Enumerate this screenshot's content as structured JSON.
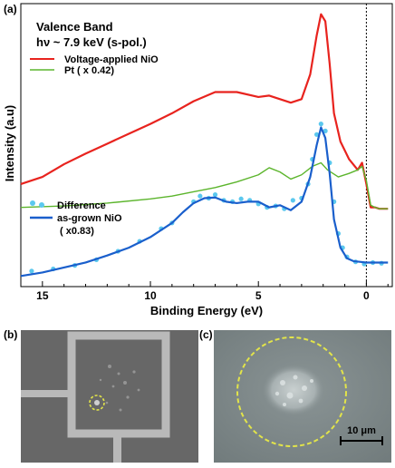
{
  "panel_labels": {
    "a": "(a)",
    "b": "(b)",
    "c": "(c)"
  },
  "chart_data": {
    "type": "line",
    "title": "Valence Band",
    "subtitle": "hν ~ 7.9 keV (s-pol.)",
    "xlabel": "Binding Energy (eV)",
    "ylabel": "Intensity (a.u)",
    "xlim": [
      16,
      -1.2
    ],
    "x_reversed": true,
    "x_ticks": [
      15,
      10,
      5,
      0
    ],
    "x_tick_labels": [
      "15",
      "10",
      "5",
      "0"
    ],
    "fermi_level_line": 0,
    "y_ticks_shown": false,
    "grid": false,
    "legend_top": [
      {
        "label": "Voltage-applied NiO",
        "color": "#e8231e"
      },
      {
        "label": "Pt ( x 0.42)",
        "color": "#5cb52d"
      }
    ],
    "legend_bottom": [
      {
        "label": "Difference",
        "color": "#5bc8ee"
      },
      {
        "label": "as-grown NiO",
        "color": "#1a5fcc"
      },
      {
        "label": "( x0.83)",
        "color": "#1a5fcc"
      }
    ],
    "series": [
      {
        "name": "Voltage-applied NiO",
        "color": "#e8231e",
        "x": [
          16,
          15,
          14,
          13,
          12,
          11,
          10,
          9,
          8,
          7,
          6,
          5,
          4.5,
          4,
          3.5,
          3,
          2.6,
          2.3,
          2.1,
          1.9,
          1.7,
          1.5,
          1.2,
          0.8,
          0.4,
          0.2,
          0,
          -0.2,
          -0.4,
          -0.6,
          -1.0
        ],
        "y": [
          1.05,
          1.15,
          1.33,
          1.48,
          1.62,
          1.76,
          1.9,
          2.05,
          2.22,
          2.35,
          2.35,
          2.28,
          2.3,
          2.25,
          2.2,
          2.25,
          2.6,
          3.15,
          3.45,
          3.35,
          2.75,
          2.05,
          1.65,
          1.4,
          1.25,
          1.35,
          1.05,
          0.72,
          0.72,
          0.7,
          0.7
        ]
      },
      {
        "name": "Pt ( x 0.42)",
        "color": "#5cb52d",
        "x": [
          16,
          14,
          12,
          10,
          9,
          8,
          7,
          6,
          5,
          4.5,
          4,
          3.5,
          3,
          2.5,
          2.1,
          1.8,
          1.3,
          0.8,
          0.4,
          0.2,
          0,
          -0.2,
          -0.4,
          -0.6,
          -1.0
        ],
        "y": [
          0.72,
          0.74,
          0.78,
          0.84,
          0.88,
          0.94,
          1.0,
          1.08,
          1.18,
          1.28,
          1.22,
          1.12,
          1.18,
          1.3,
          1.35,
          1.25,
          1.15,
          1.2,
          1.25,
          1.3,
          1.1,
          0.75,
          0.72,
          0.7,
          0.7
        ]
      },
      {
        "name": "as-grown NiO ( x0.83)",
        "color": "#1a5fcc",
        "x": [
          16,
          15,
          14,
          13,
          12,
          11,
          10,
          9,
          8.5,
          8,
          7.5,
          7,
          6.5,
          6,
          5.5,
          5,
          4.5,
          4,
          3.5,
          3,
          2.6,
          2.3,
          2.1,
          1.9,
          1.7,
          1.5,
          1.2,
          0.9,
          0.6,
          0.3,
          0,
          -0.3,
          -0.6,
          -1.0
        ],
        "y": [
          -0.25,
          -0.2,
          -0.13,
          -0.06,
          0.04,
          0.15,
          0.3,
          0.5,
          0.65,
          0.78,
          0.85,
          0.86,
          0.8,
          0.78,
          0.8,
          0.8,
          0.72,
          0.75,
          0.68,
          0.8,
          1.15,
          1.6,
          1.85,
          1.7,
          1.2,
          0.55,
          0.15,
          0.0,
          -0.04,
          -0.05,
          -0.06,
          -0.06,
          -0.06,
          -0.06
        ]
      },
      {
        "name": "Difference",
        "color": "#5bc8ee",
        "marker": "dot",
        "x": [
          15.5,
          14.5,
          13.5,
          12.5,
          11.5,
          10.5,
          9.5,
          9.0,
          8.0,
          7.7,
          7.3,
          7.0,
          6.6,
          6.2,
          5.8,
          5.4,
          5.0,
          4.6,
          4.2,
          3.8,
          3.4,
          3.0,
          2.7,
          2.5,
          2.3,
          2.1,
          1.9,
          1.7,
          1.5,
          1.3,
          1.1,
          0.9,
          0.5,
          0.1,
          -0.3,
          -0.7
        ],
        "y": [
          -0.18,
          -0.15,
          -0.1,
          -0.02,
          0.1,
          0.24,
          0.42,
          0.5,
          0.8,
          0.88,
          0.85,
          0.9,
          0.82,
          0.8,
          0.84,
          0.82,
          0.77,
          0.72,
          0.74,
          0.7,
          0.82,
          0.85,
          1.05,
          1.4,
          1.75,
          1.9,
          1.8,
          1.35,
          0.8,
          0.35,
          0.15,
          0.02,
          -0.05,
          -0.08,
          -0.06,
          -0.07
        ]
      }
    ]
  },
  "image_c": {
    "scale_label": "10 μm"
  }
}
